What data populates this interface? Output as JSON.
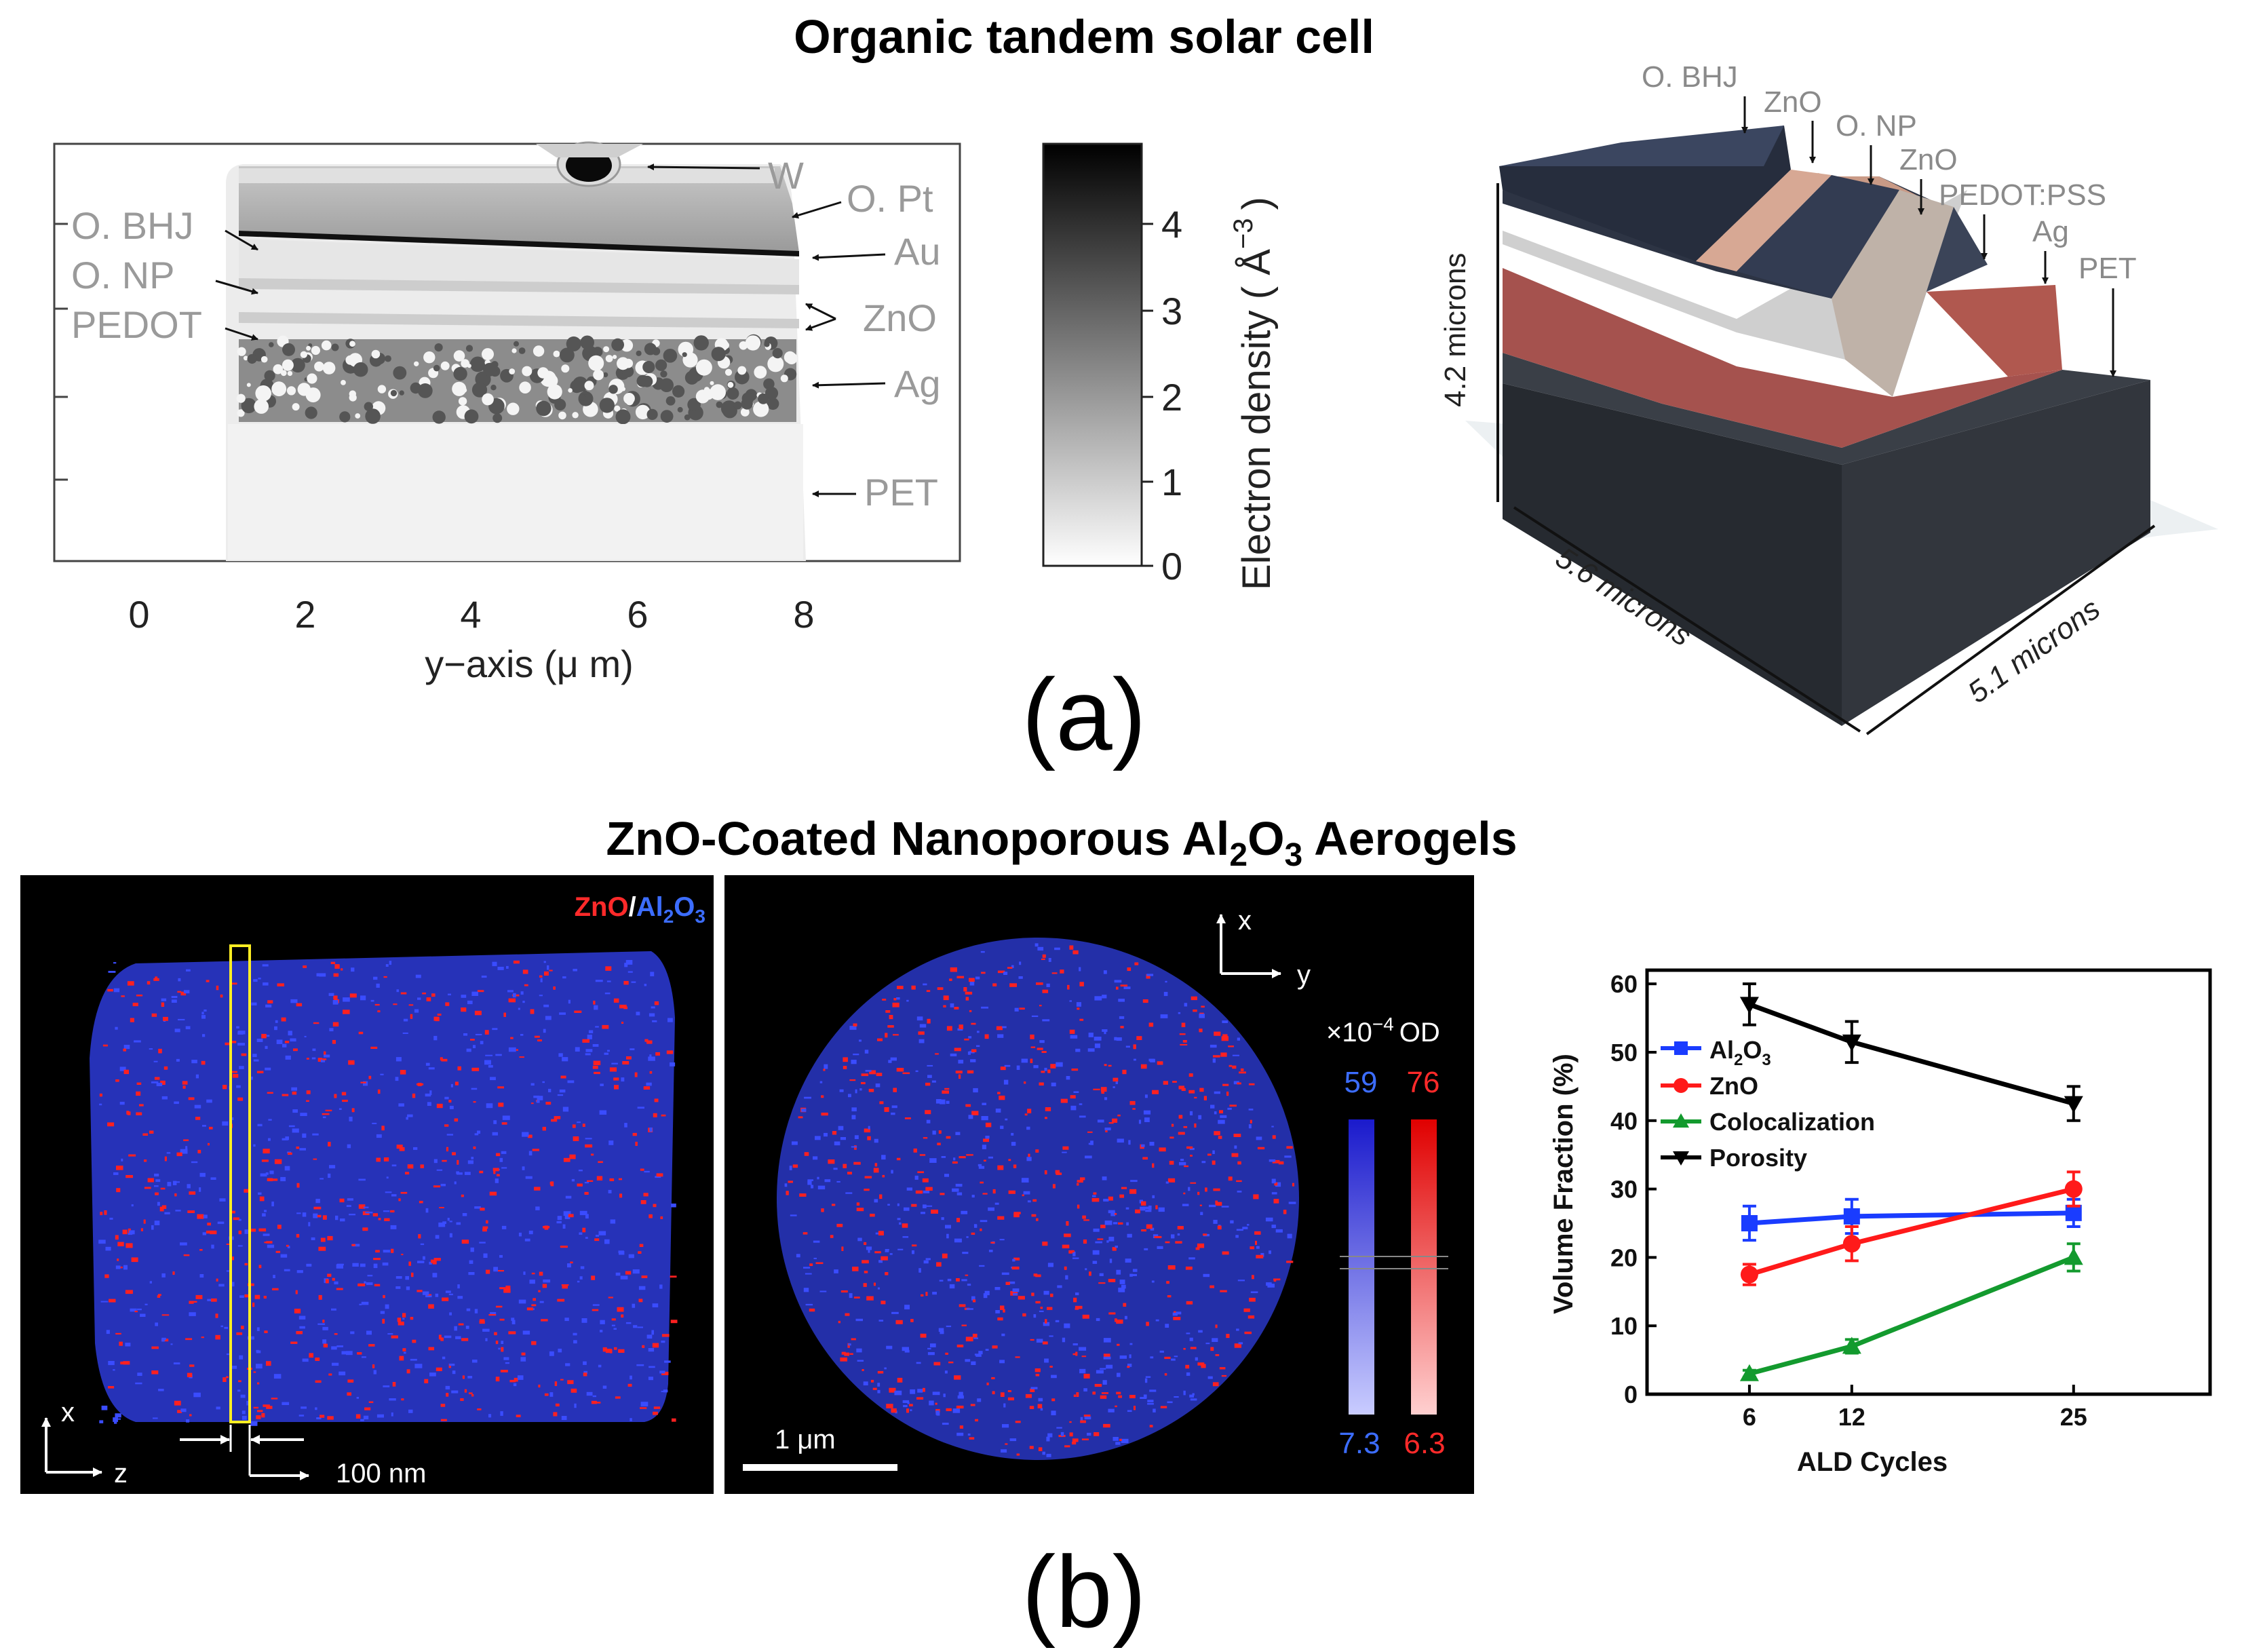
{
  "panel_a": {
    "title": "Organic tandem solar cell",
    "label": "(a)",
    "cross_section": {
      "x_axis_label": "y−axis (μ m)",
      "x_ticks": [
        "0",
        "2",
        "4",
        "6",
        "8"
      ],
      "layer_labels_left": [
        "O. BHJ",
        "O. NP",
        "PEDOT"
      ],
      "layer_labels_right": [
        "W",
        "O. Pt",
        "Au",
        "ZnO",
        "Ag",
        "PET"
      ]
    },
    "colorbar": {
      "label": "Electron density ( Å",
      "label_exp": "−3",
      "label_close": ")",
      "ticks": [
        "0",
        "1",
        "2",
        "3",
        "4"
      ]
    },
    "render_3d": {
      "layer_labels": [
        "O. BHJ",
        "ZnO",
        "O. NP",
        "ZnO",
        "PEDOT:PSS",
        "Ag",
        "PET"
      ],
      "dim_height": "4.2 microns",
      "dim_width": "5.6 microns",
      "dim_depth": "5.1 microns"
    }
  },
  "panel_b": {
    "title_parts": [
      "ZnO-Coated Nanoporous Al",
      "2",
      "O",
      "3",
      " Aerogels"
    ],
    "label": "(b)",
    "image1": {
      "legend_zno": "ZnO",
      "legend_slash": "/",
      "legend_al": "Al",
      "legend_sub2": "2",
      "legend_o": "O",
      "legend_sub3": "3",
      "axis_x": "x",
      "axis_z": "z",
      "scale": "100 nm"
    },
    "image2": {
      "axis_x": "x",
      "axis_y": "y",
      "od_prefix": "×10",
      "od_exp": "−4",
      "od_unit": "OD",
      "blue_max": "59",
      "red_max": "76",
      "blue_min": "7.3",
      "red_min": "6.3",
      "scale": "1 μm"
    },
    "colors": {
      "zno": "#ff1a1a",
      "al2o3": "#1a3cff",
      "background": "#000000"
    }
  },
  "chart_data": {
    "type": "line",
    "xlabel": "ALD Cycles",
    "ylabel": "Volume Fraction (%)",
    "x": [
      6,
      12,
      25
    ],
    "x_ticks": [
      "6",
      "12",
      "25"
    ],
    "y_ticks": [
      "0",
      "10",
      "20",
      "30",
      "40",
      "50",
      "60"
    ],
    "ylim": [
      0,
      62
    ],
    "series": [
      {
        "name": "Al2O3",
        "color": "#1a3cff",
        "marker": "square",
        "values": [
          25,
          26,
          26.5
        ],
        "errors": [
          2.5,
          2.5,
          2
        ]
      },
      {
        "name": "ZnO",
        "color": "#ff1a1a",
        "marker": "circle",
        "values": [
          17.5,
          22,
          30
        ],
        "errors": [
          1.5,
          2.5,
          2.5
        ]
      },
      {
        "name": "Colocalization",
        "color": "#139a2e",
        "marker": "triangle-up",
        "values": [
          3,
          7,
          20
        ],
        "errors": [
          0.5,
          1,
          2
        ]
      },
      {
        "name": "Porosity",
        "color": "#000000",
        "marker": "triangle-down",
        "values": [
          57,
          51.5,
          42.5
        ],
        "errors": [
          3,
          3,
          2.5
        ]
      }
    ],
    "legend_labels": [
      {
        "text": "Al",
        "sub1": "2",
        "mid": "O",
        "sub2": "3"
      },
      {
        "text": "ZnO"
      },
      {
        "text": "Colocalization"
      },
      {
        "text": "Porosity"
      }
    ],
    "legend_position": "top-left"
  }
}
